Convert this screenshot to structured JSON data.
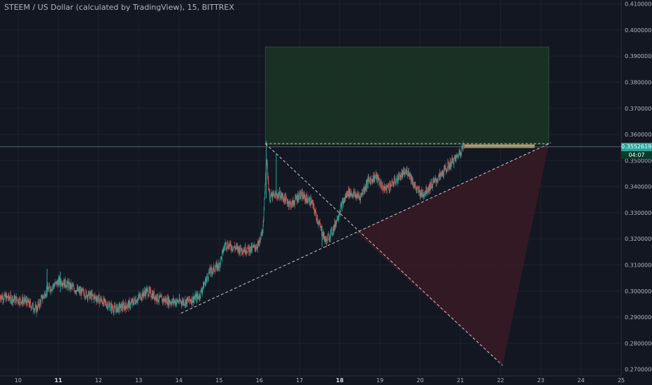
{
  "header": {
    "title": "STEEM / US Dollar (calculated by TradingView), 15, BITTREX"
  },
  "price_scale": {
    "current_price": "0.35526194",
    "countdown": "04:07",
    "current_color": "#26a69a"
  },
  "colors": {
    "background": "#131722",
    "up": "#26a69a",
    "down": "#ef5350",
    "target_zone": "#1b3326",
    "stop_zone": "#3a1a24",
    "axis_text": "#b2b5be",
    "dashed_line": "#c8cad0",
    "highlight": "#c8a96e"
  },
  "chart_data": {
    "type": "candlestick",
    "title": "STEEM / US Dollar (calculated by TradingView), 15, BITTREX",
    "xlabel": "",
    "ylabel": "",
    "x_ticks": [
      "10",
      "11",
      "12",
      "13",
      "14",
      "15",
      "16",
      "17",
      "18",
      "19",
      "20",
      "21",
      "22",
      "23",
      "24",
      "25"
    ],
    "x_ticks_bold": [
      "11",
      "18"
    ],
    "y_ticks": [
      "0.27000000",
      "0.28000000",
      "0.29000000",
      "0.30000000",
      "0.31000000",
      "0.32000000",
      "0.33000000",
      "0.34000000",
      "0.35000000",
      "0.36000000",
      "0.37000000",
      "0.38000000",
      "0.39000000",
      "0.40000000",
      "0.41000000"
    ],
    "ylim": [
      0.2675,
      0.4115
    ],
    "xlim": [
      9.55,
      25.0
    ],
    "grid": true,
    "price_path": [
      [
        9.55,
        0.298
      ],
      [
        10.2,
        0.296
      ],
      [
        10.45,
        0.293
      ],
      [
        10.7,
        0.3
      ],
      [
        11.05,
        0.304
      ],
      [
        11.5,
        0.3
      ],
      [
        12.0,
        0.297
      ],
      [
        12.4,
        0.293
      ],
      [
        12.8,
        0.295
      ],
      [
        13.2,
        0.3
      ],
      [
        13.5,
        0.297
      ],
      [
        13.8,
        0.296
      ],
      [
        14.2,
        0.296
      ],
      [
        14.5,
        0.298
      ],
      [
        14.75,
        0.307
      ],
      [
        15.0,
        0.31
      ],
      [
        15.15,
        0.318
      ],
      [
        15.5,
        0.316
      ],
      [
        15.8,
        0.316
      ],
      [
        16.0,
        0.318
      ],
      [
        16.1,
        0.325
      ],
      [
        16.17,
        0.352
      ],
      [
        16.25,
        0.336
      ],
      [
        16.5,
        0.337
      ],
      [
        16.8,
        0.333
      ],
      [
        17.0,
        0.337
      ],
      [
        17.3,
        0.334
      ],
      [
        17.5,
        0.325
      ],
      [
        17.65,
        0.319
      ],
      [
        17.85,
        0.324
      ],
      [
        18.0,
        0.331
      ],
      [
        18.2,
        0.338
      ],
      [
        18.5,
        0.336
      ],
      [
        18.7,
        0.342
      ],
      [
        18.9,
        0.344
      ],
      [
        19.1,
        0.339
      ],
      [
        19.3,
        0.341
      ],
      [
        19.5,
        0.344
      ],
      [
        19.7,
        0.346
      ],
      [
        19.9,
        0.339
      ],
      [
        20.05,
        0.337
      ],
      [
        20.3,
        0.341
      ],
      [
        20.5,
        0.344
      ],
      [
        20.7,
        0.348
      ],
      [
        20.9,
        0.351
      ],
      [
        21.05,
        0.355
      ],
      [
        21.1,
        0.35526194
      ]
    ],
    "annotations": {
      "target_zone": {
        "x": [
          16.15,
          23.2
        ],
        "y": [
          0.3562,
          0.3935
        ]
      },
      "stop_zone": {
        "vertices": [
          [
            18.4,
            0.3225
          ],
          [
            23.2,
            0.3565
          ],
          [
            22.05,
            0.2715
          ]
        ]
      },
      "trendline_support": {
        "from": [
          14.05,
          0.2915
        ],
        "to": [
          23.25,
          0.3568
        ]
      },
      "trendline_resistance": {
        "from": [
          16.15,
          0.3565
        ],
        "to": [
          22.05,
          0.2715
        ]
      },
      "level_line": {
        "from": [
          16.15,
          0.3565
        ],
        "to": [
          23.25,
          0.3565
        ]
      },
      "highlight_bar": {
        "x": [
          21.1,
          22.85
        ],
        "y": 0.3555
      },
      "current_price": 0.35526194
    }
  }
}
